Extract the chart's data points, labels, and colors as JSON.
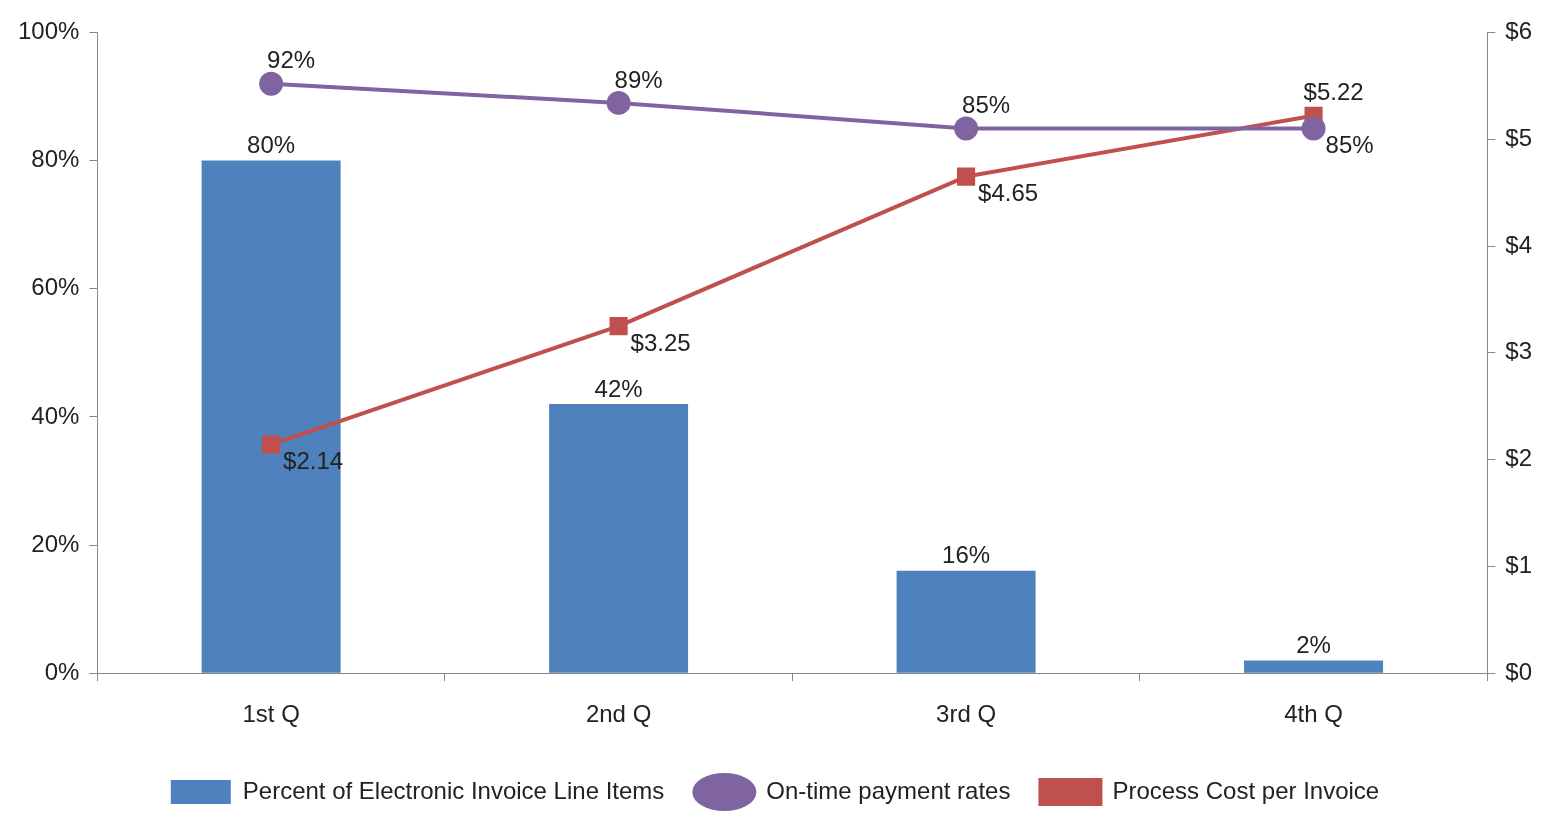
{
  "chart_data": {
    "type": "bar",
    "categories": [
      "1st Q",
      "2nd Q",
      "3rd Q",
      "4th Q"
    ],
    "series": [
      {
        "name": "Percent of Electronic Invoice Line Items",
        "color": "#4f81bd",
        "values": [
          80,
          42,
          16,
          2
        ],
        "value_labels": [
          "80%",
          "42%",
          "16%",
          "2%"
        ]
      },
      {
        "name": "On-time payment rates",
        "type": "line",
        "color": "#8064a2",
        "marker": "circle",
        "values": [
          92,
          89,
          85,
          85
        ],
        "value_labels": [
          "92%",
          "89%",
          "85%",
          "85%"
        ]
      },
      {
        "name": "Process Cost per Invoice",
        "type": "line",
        "axis": "y2",
        "color": "#c0504d",
        "marker": "square",
        "values": [
          2.14,
          3.25,
          4.65,
          5.22
        ],
        "value_labels": [
          "$2.14",
          "$3.25",
          "$4.65",
          "$5.22"
        ]
      }
    ],
    "ylim": [
      0,
      100
    ],
    "yticks": [
      {
        "value": 0,
        "label": "0%"
      },
      {
        "value": 20,
        "label": "20%"
      },
      {
        "value": 40,
        "label": "40%"
      },
      {
        "value": 60,
        "label": "60%"
      },
      {
        "value": 80,
        "label": "80%"
      },
      {
        "value": 100,
        "label": "100%"
      }
    ],
    "y2lim": [
      0,
      6
    ],
    "y2ticks": [
      {
        "value": 0,
        "label": "$0"
      },
      {
        "value": 1,
        "label": "$1"
      },
      {
        "value": 2,
        "label": "$2"
      },
      {
        "value": 3,
        "label": "$3"
      },
      {
        "value": 4,
        "label": "$4"
      },
      {
        "value": 5,
        "label": "$5"
      },
      {
        "value": 6,
        "label": "$6"
      }
    ],
    "grid": false,
    "legend": "bottom"
  }
}
